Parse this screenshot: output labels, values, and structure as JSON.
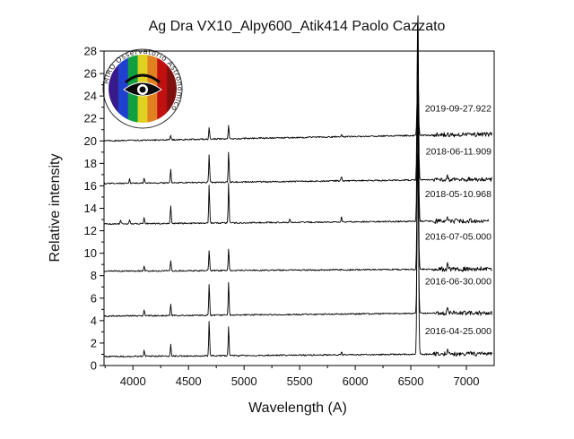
{
  "chart_data": {
    "type": "line",
    "title": "Ag Dra VX10_Alpy600_Atik414 Paolo Cazzato",
    "xlabel": "Wavelength (A)",
    "ylabel": "Relative intensity",
    "xlim": [
      3740,
      7250
    ],
    "ylim": [
      0,
      28
    ],
    "xticks": [
      4000,
      4500,
      5000,
      5500,
      6000,
      6500,
      7000
    ],
    "yticks": [
      0,
      2,
      4,
      6,
      8,
      10,
      12,
      14,
      16,
      18,
      20,
      22,
      24,
      26,
      28
    ],
    "grid": false,
    "legend": "labels inside plot, right side",
    "line_color": "#000000",
    "series": [
      {
        "name": "2016-04-25.000",
        "offset": 0.8,
        "continuum_slope": 0.25,
        "label_y": 2.8,
        "lines": [
          {
            "x": 4340,
            "h": 1.0
          },
          {
            "x": 4686,
            "h": 3.2
          },
          {
            "x": 4861,
            "h": 2.6
          },
          {
            "x": 6563,
            "h": 25.8
          },
          {
            "x": 6830,
            "h": 0.5
          },
          {
            "x": 4101,
            "h": 0.5
          },
          {
            "x": 5876,
            "h": 0.3
          }
        ],
        "end_x": 7230
      },
      {
        "name": "2016-06-30.000",
        "offset": 4.4,
        "continuum_slope": 0.3,
        "label_y": 7.2,
        "lines": [
          {
            "x": 4340,
            "h": 1.0
          },
          {
            "x": 4686,
            "h": 2.8
          },
          {
            "x": 4861,
            "h": 3.0
          },
          {
            "x": 6563,
            "h": 15.0
          },
          {
            "x": 6830,
            "h": 0.5
          },
          {
            "x": 4101,
            "h": 0.5
          }
        ],
        "end_x": 7230
      },
      {
        "name": "2016-07-05.000",
        "offset": 8.4,
        "continuum_slope": 0.2,
        "label_y": 11.2,
        "lines": [
          {
            "x": 4340,
            "h": 0.9
          },
          {
            "x": 4686,
            "h": 1.8
          },
          {
            "x": 4861,
            "h": 2.0
          },
          {
            "x": 6563,
            "h": 14.5
          },
          {
            "x": 6830,
            "h": 0.5
          },
          {
            "x": 4101,
            "h": 0.4
          }
        ],
        "end_x": 7230
      },
      {
        "name": "2018-05-10.968",
        "offset": 12.6,
        "continuum_slope": 0.3,
        "label_y": 15.0,
        "lines": [
          {
            "x": 4340,
            "h": 1.6
          },
          {
            "x": 4686,
            "h": 3.5
          },
          {
            "x": 4861,
            "h": 3.6
          },
          {
            "x": 6563,
            "h": 18.5
          },
          {
            "x": 6830,
            "h": 0.5
          },
          {
            "x": 4101,
            "h": 0.6
          },
          {
            "x": 3970,
            "h": 0.4
          },
          {
            "x": 3889,
            "h": 0.3
          },
          {
            "x": 5876,
            "h": 0.4
          },
          {
            "x": 5411,
            "h": 0.3
          }
        ],
        "end_x": 7200
      },
      {
        "name": "2018-06-11.909",
        "offset": 16.2,
        "continuum_slope": 0.4,
        "label_y": 18.8,
        "lines": [
          {
            "x": 4340,
            "h": 1.2
          },
          {
            "x": 4686,
            "h": 2.5
          },
          {
            "x": 4861,
            "h": 2.8
          },
          {
            "x": 6563,
            "h": 15.5
          },
          {
            "x": 6830,
            "h": 0.4
          },
          {
            "x": 4101,
            "h": 0.5
          },
          {
            "x": 3970,
            "h": 0.4
          },
          {
            "x": 5876,
            "h": 0.4
          }
        ],
        "end_x": 7230
      },
      {
        "name": "2019-09-27.922",
        "offset": 20.0,
        "continuum_slope": 0.6,
        "label_y": 22.6,
        "lines": [
          {
            "x": 4340,
            "h": 0.4
          },
          {
            "x": 4686,
            "h": 1.0
          },
          {
            "x": 4861,
            "h": 1.2
          },
          {
            "x": 6563,
            "h": 6.8
          },
          {
            "x": 6830,
            "h": 0.3
          },
          {
            "x": 5876,
            "h": 0.2
          }
        ],
        "end_x": 7230
      }
    ]
  },
  "logo": {
    "ring_text": "MIRO Osservatorio Astronomico",
    "colors": [
      "#3a1a8a",
      "#2040d0",
      "#10a040",
      "#e0d020",
      "#e08020",
      "#c01010",
      "#801010"
    ]
  }
}
